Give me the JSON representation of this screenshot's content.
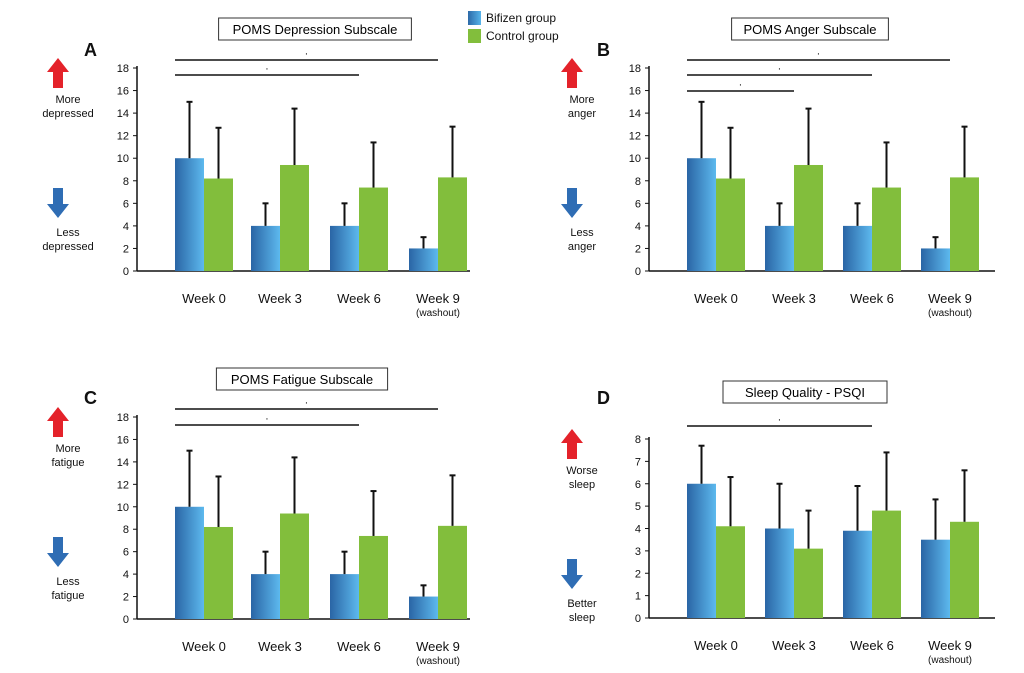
{
  "legend": {
    "items": [
      {
        "label": "Bifizen group",
        "color": "#3a8fd0"
      },
      {
        "label": "Control group",
        "color": "#82be3c"
      }
    ]
  },
  "chart_data": [
    {
      "panel": "A",
      "type": "bar",
      "title": "POMS Depression Subscale",
      "categories": [
        "Week 0",
        "Week 3",
        "Week 6",
        "Week 9"
      ],
      "category_sublabels": [
        "",
        "",
        "",
        "(washout)"
      ],
      "series": [
        {
          "name": "Bifizen group",
          "values": [
            10,
            4,
            4,
            2
          ],
          "errors": [
            5,
            2,
            2,
            1
          ],
          "color": "#3a8fd0"
        },
        {
          "name": "Control group",
          "values": [
            8.2,
            9.4,
            7.4,
            8.3
          ],
          "errors": [
            4.5,
            5,
            4,
            4.5
          ],
          "color": "#82be3c"
        }
      ],
      "ylim": [
        0,
        18
      ],
      "yticks": [
        0,
        2,
        4,
        6,
        8,
        10,
        12,
        14,
        16,
        18
      ],
      "upper_label": [
        "More",
        "depressed"
      ],
      "lower_label": [
        "Less",
        "depressed"
      ],
      "significance": [
        {
          "from": 0,
          "to": 2,
          "label": "·"
        },
        {
          "from": 0,
          "to": 3,
          "label": "·"
        }
      ]
    },
    {
      "panel": "B",
      "type": "bar",
      "title": "POMS Anger Subscale",
      "categories": [
        "Week 0",
        "Week 3",
        "Week 6",
        "Week 9"
      ],
      "category_sublabels": [
        "",
        "",
        "",
        "(washout)"
      ],
      "series": [
        {
          "name": "Bifizen group",
          "values": [
            10,
            4,
            4,
            2
          ],
          "errors": [
            5,
            2,
            2,
            1
          ],
          "color": "#3a8fd0"
        },
        {
          "name": "Control group",
          "values": [
            8.2,
            9.4,
            7.4,
            8.3
          ],
          "errors": [
            4.5,
            5,
            4,
            4.5
          ],
          "color": "#82be3c"
        }
      ],
      "ylim": [
        0,
        18
      ],
      "yticks": [
        0,
        2,
        4,
        6,
        8,
        10,
        12,
        14,
        16,
        18
      ],
      "upper_label": [
        "More",
        "anger"
      ],
      "lower_label": [
        "Less",
        "anger"
      ],
      "significance": [
        {
          "from": 0,
          "to": 1,
          "label": "·"
        },
        {
          "from": 0,
          "to": 2,
          "label": "·"
        },
        {
          "from": 0,
          "to": 3,
          "label": "·"
        }
      ]
    },
    {
      "panel": "C",
      "type": "bar",
      "title": "POMS Fatigue Subscale",
      "categories": [
        "Week 0",
        "Week 3",
        "Week 6",
        "Week 9"
      ],
      "category_sublabels": [
        "",
        "",
        "",
        "(washout)"
      ],
      "series": [
        {
          "name": "Bifizen group",
          "values": [
            10,
            4,
            4,
            2
          ],
          "errors": [
            5,
            2,
            2,
            1
          ],
          "color": "#3a8fd0"
        },
        {
          "name": "Control group",
          "values": [
            8.2,
            9.4,
            7.4,
            8.3
          ],
          "errors": [
            4.5,
            5,
            4,
            4.5
          ],
          "color": "#82be3c"
        }
      ],
      "ylim": [
        0,
        18
      ],
      "yticks": [
        0,
        2,
        4,
        6,
        8,
        10,
        12,
        14,
        16,
        18
      ],
      "upper_label": [
        "More",
        "fatigue"
      ],
      "lower_label": [
        "Less",
        "fatigue"
      ],
      "significance": [
        {
          "from": 0,
          "to": 2,
          "label": "·"
        },
        {
          "from": 0,
          "to": 3,
          "label": "·"
        }
      ]
    },
    {
      "panel": "D",
      "type": "bar",
      "title": "Sleep Quality - PSQI",
      "categories": [
        "Week 0",
        "Week 3",
        "Week 6",
        "Week 9"
      ],
      "category_sublabels": [
        "",
        "",
        "",
        "(washout)"
      ],
      "series": [
        {
          "name": "Bifizen group",
          "values": [
            6,
            4,
            3.9,
            3.5
          ],
          "errors": [
            1.7,
            2,
            2,
            1.8
          ],
          "color": "#3a8fd0"
        },
        {
          "name": "Control group",
          "values": [
            4.1,
            3.1,
            4.8,
            4.3
          ],
          "errors": [
            2.2,
            1.7,
            2.6,
            2.3
          ],
          "color": "#82be3c"
        }
      ],
      "ylim": [
        0,
        8
      ],
      "yticks": [
        0,
        1,
        2,
        3,
        4,
        5,
        6,
        7,
        8
      ],
      "upper_label": [
        "Worse",
        "sleep"
      ],
      "lower_label": [
        "Better",
        "sleep"
      ],
      "significance": [
        {
          "from": 0,
          "to": 2,
          "label": "·"
        }
      ]
    }
  ]
}
